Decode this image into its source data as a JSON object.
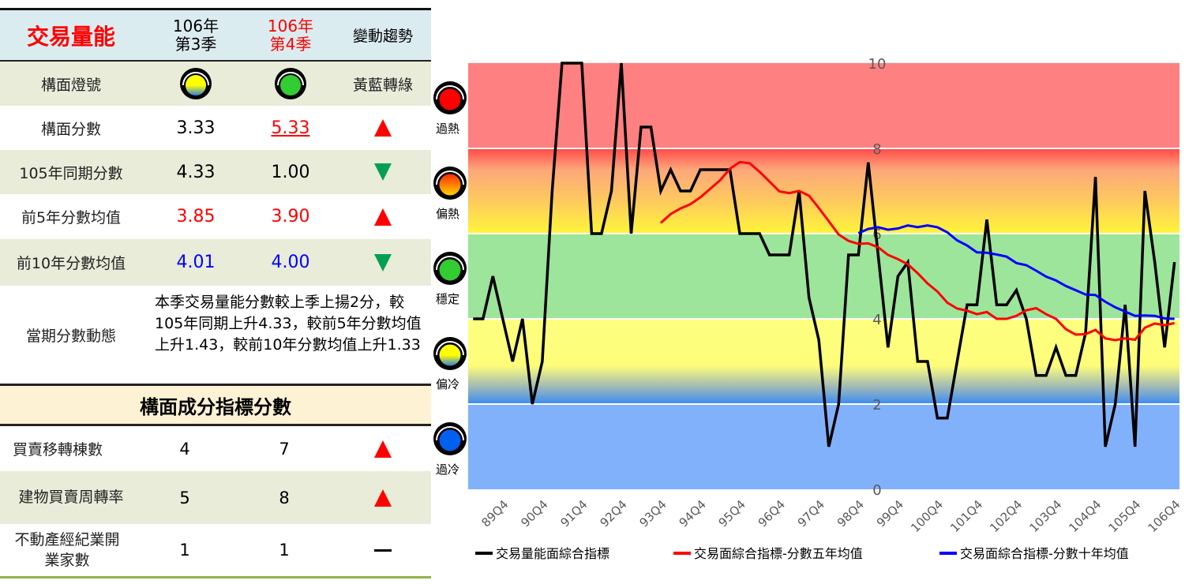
{
  "table": {
    "title": "交易量能",
    "col_q3": [
      "106年",
      "第3季"
    ],
    "col_q4": [
      "106年",
      "第4季"
    ],
    "col_trend": "變動趨勢",
    "rows": [
      {
        "label": "構面燈號",
        "q3_light": "yellow-blue",
        "q4_light": "green",
        "trend": "黃藍轉綠"
      },
      {
        "label": "構面分數",
        "q3": "3.33",
        "q4": "5.33",
        "trend": "up"
      },
      {
        "label": "105年同期分數",
        "q3": "4.33",
        "q4": "1.00",
        "trend": "down"
      },
      {
        "label": "前5年分數均值",
        "q3": "3.85",
        "q4": "3.90",
        "trend": "up"
      },
      {
        "label": "前10年分數均值",
        "q3": "4.01",
        "q4": "4.00",
        "trend": "down"
      }
    ],
    "dynamics_label": "當期分數動態",
    "dynamics_text": "本季交易量能分數較上季上揚2分，較105年同期上升4.33，較前5年分數均值上升1.43，較前10年分數均值上升1.33",
    "component_header": "構面成分指標分數",
    "components": [
      {
        "label": "買賣移轉棟數",
        "q3": "4",
        "q4": "7",
        "trend": "up"
      },
      {
        "label": "建物買賣周轉率",
        "q3": "5",
        "q4": "8",
        "trend": "up"
      },
      {
        "label": "不動產經紀業開業家數",
        "q3": "1",
        "q4": "1",
        "trend": "flat",
        "trend_text": "—"
      }
    ],
    "colors": {
      "header_bg": "#dbecf0",
      "alt_row": "#e8ecd9",
      "component_bg": "#fdf2d4",
      "up": "#ff0000",
      "down": "#00a050"
    }
  },
  "chart_data": {
    "type": "line",
    "ylim": [
      0,
      10
    ],
    "yticks": [
      "0",
      "2",
      "4",
      "6",
      "8",
      "10"
    ],
    "bands": [
      {
        "range": [
          8,
          10
        ],
        "label": "過熱",
        "light": "red",
        "color": "#ff8080"
      },
      {
        "range": [
          6,
          8
        ],
        "label": "偏熱",
        "light": "orange",
        "color": "#fdb870"
      },
      {
        "range": [
          4,
          6
        ],
        "label": "穩定",
        "light": "green",
        "color": "#9ce59a"
      },
      {
        "range": [
          2,
          4
        ],
        "label": "偏冷",
        "light": "yellow-blue",
        "color": "#ffff80"
      },
      {
        "range": [
          0,
          2
        ],
        "label": "過冷",
        "light": "blue",
        "color": "#82b1fc"
      }
    ],
    "x_start": "89Q1",
    "x_tick_labels": [
      "89Q4",
      "90Q4",
      "91Q4",
      "92Q4",
      "93Q4",
      "94Q4",
      "95Q4",
      "96Q4",
      "97Q4",
      "98Q4",
      "99Q4",
      "100Q4",
      "101Q4",
      "102Q4",
      "103Q4",
      "104Q4",
      "105Q4",
      "106Q4"
    ],
    "legend_position": "bottom",
    "series": [
      {
        "name": "交易量能面綜合指標",
        "color": "#000000",
        "values": [
          4,
          4,
          5,
          4,
          3,
          4,
          2,
          3,
          7,
          10,
          10,
          10,
          6,
          6,
          7,
          10,
          6,
          8.5,
          8.5,
          7,
          7.5,
          7,
          7,
          7.5,
          7.5,
          7.5,
          7.5,
          6,
          6,
          6,
          5.5,
          5.5,
          5.5,
          7,
          4.5,
          3.5,
          1,
          2,
          5.5,
          5.5,
          7.67,
          5.5,
          3.33,
          5,
          5.33,
          3,
          3,
          1.67,
          1.67,
          3,
          4.33,
          4.33,
          6.33,
          4.33,
          4.33,
          4.67,
          4,
          2.67,
          2.67,
          3.33,
          2.67,
          2.67,
          3.67,
          7.33,
          1,
          2,
          4.33,
          1,
          7,
          5.33,
          3.33,
          5.33
        ]
      },
      {
        "name": "交易面綜合指標-分數五年均值",
        "color": "#ff0000",
        "values": [
          null,
          null,
          null,
          null,
          null,
          null,
          null,
          null,
          null,
          null,
          null,
          null,
          null,
          null,
          null,
          null,
          null,
          null,
          null,
          6.25,
          6.46,
          6.59,
          6.69,
          6.85,
          7.05,
          7.25,
          7.52,
          7.68,
          7.65,
          7.45,
          7.22,
          6.99,
          6.95,
          7.0,
          6.89,
          6.6,
          6.29,
          5.98,
          5.83,
          5.76,
          5.77,
          5.68,
          5.5,
          5.4,
          5.28,
          5.07,
          4.83,
          4.64,
          4.38,
          4.24,
          4.19,
          4.11,
          4.16,
          4.0,
          4.0,
          4.07,
          4.2,
          4.25,
          4.11,
          4.0,
          3.76,
          3.63,
          3.64,
          3.74,
          3.54,
          3.5,
          3.54,
          3.51,
          3.79,
          3.89,
          3.85,
          3.9
        ]
      },
      {
        "name": "交易面綜合指標-分數十年均值",
        "color": "#0000ff",
        "values": [
          null,
          null,
          null,
          null,
          null,
          null,
          null,
          null,
          null,
          null,
          null,
          null,
          null,
          null,
          null,
          null,
          null,
          null,
          null,
          null,
          null,
          null,
          null,
          null,
          null,
          null,
          null,
          null,
          null,
          null,
          null,
          null,
          null,
          null,
          null,
          null,
          null,
          null,
          null,
          6.01,
          6.11,
          6.15,
          6.09,
          6.12,
          6.19,
          6.15,
          6.19,
          6.15,
          6.03,
          5.84,
          5.72,
          5.56,
          5.55,
          5.51,
          5.46,
          5.31,
          5.26,
          5.13,
          4.99,
          4.9,
          4.77,
          4.67,
          4.57,
          4.56,
          4.4,
          4.27,
          4.17,
          4.07,
          4.08,
          4.07,
          4.01,
          4.0
        ]
      }
    ]
  }
}
